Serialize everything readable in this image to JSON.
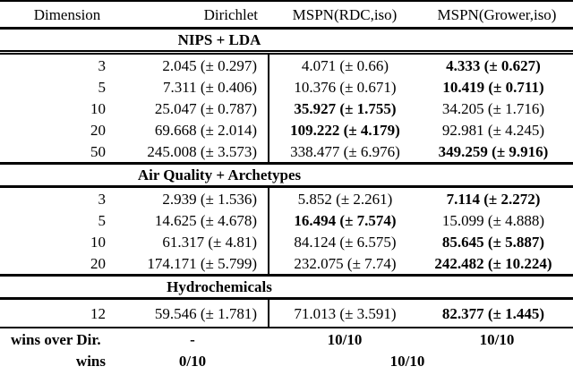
{
  "table": {
    "columns": {
      "dimension": "Dimension",
      "dirichlet": "Dirichlet",
      "rdc": "MSPN(RDC,iso)",
      "grower": "MSPN(Grower,iso)"
    },
    "sections": [
      {
        "title": "NIPS + LDA",
        "rows": [
          {
            "dimension": "3",
            "dirichlet": "2.045 (± 0.297)",
            "rdc": "4.071 (± 0.66)",
            "grower": "4.333 (± 0.627)",
            "winner": "grower"
          },
          {
            "dimension": "5",
            "dirichlet": "7.311 (± 0.406)",
            "rdc": "10.376 (± 0.671)",
            "grower": "10.419 (± 0.711)",
            "winner": "grower"
          },
          {
            "dimension": "10",
            "dirichlet": "25.047 (± 0.787)",
            "rdc": "35.927 (± 1.755)",
            "grower": "34.205 (± 1.716)",
            "winner": "rdc"
          },
          {
            "dimension": "20",
            "dirichlet": "69.668 (± 2.014)",
            "rdc": "109.222 (± 4.179)",
            "grower": "92.981 (± 4.245)",
            "winner": "rdc"
          },
          {
            "dimension": "50",
            "dirichlet": "245.008 (± 3.573)",
            "rdc": "338.477 (± 6.976)",
            "grower": "349.259 (± 9.916)",
            "winner": "grower"
          }
        ]
      },
      {
        "title": "Air Quality + Archetypes",
        "rows": [
          {
            "dimension": "3",
            "dirichlet": "2.939 (± 1.536)",
            "rdc": "5.852 (± 2.261)",
            "grower": "7.114 (± 2.272)",
            "winner": "grower"
          },
          {
            "dimension": "5",
            "dirichlet": "14.625 (± 4.678)",
            "rdc": "16.494 (± 7.574)",
            "grower": "15.099 (± 4.888)",
            "winner": "rdc"
          },
          {
            "dimension": "10",
            "dirichlet": "61.317 (± 4.81)",
            "rdc": "84.124 (± 6.575)",
            "grower": "85.645 (± 5.887)",
            "winner": "grower"
          },
          {
            "dimension": "20",
            "dirichlet": "174.171 (± 5.799)",
            "rdc": "232.075 (± 7.74)",
            "grower": "242.482 (± 10.224)",
            "winner": "grower"
          }
        ]
      },
      {
        "title": "Hydrochemicals",
        "rows": [
          {
            "dimension": "12",
            "dirichlet": "59.546 (± 1.781)",
            "rdc": "71.013 (± 3.591)",
            "grower": "82.377 (± 1.445)",
            "winner": "grower"
          }
        ]
      }
    ],
    "footer": {
      "wins_over_dir": {
        "label": "wins over Dir.",
        "dirichlet": "-",
        "rdc": "10/10",
        "grower": "10/10"
      },
      "wins": {
        "label": "wins",
        "dirichlet": "0/10",
        "mspn": "10/10"
      }
    }
  }
}
